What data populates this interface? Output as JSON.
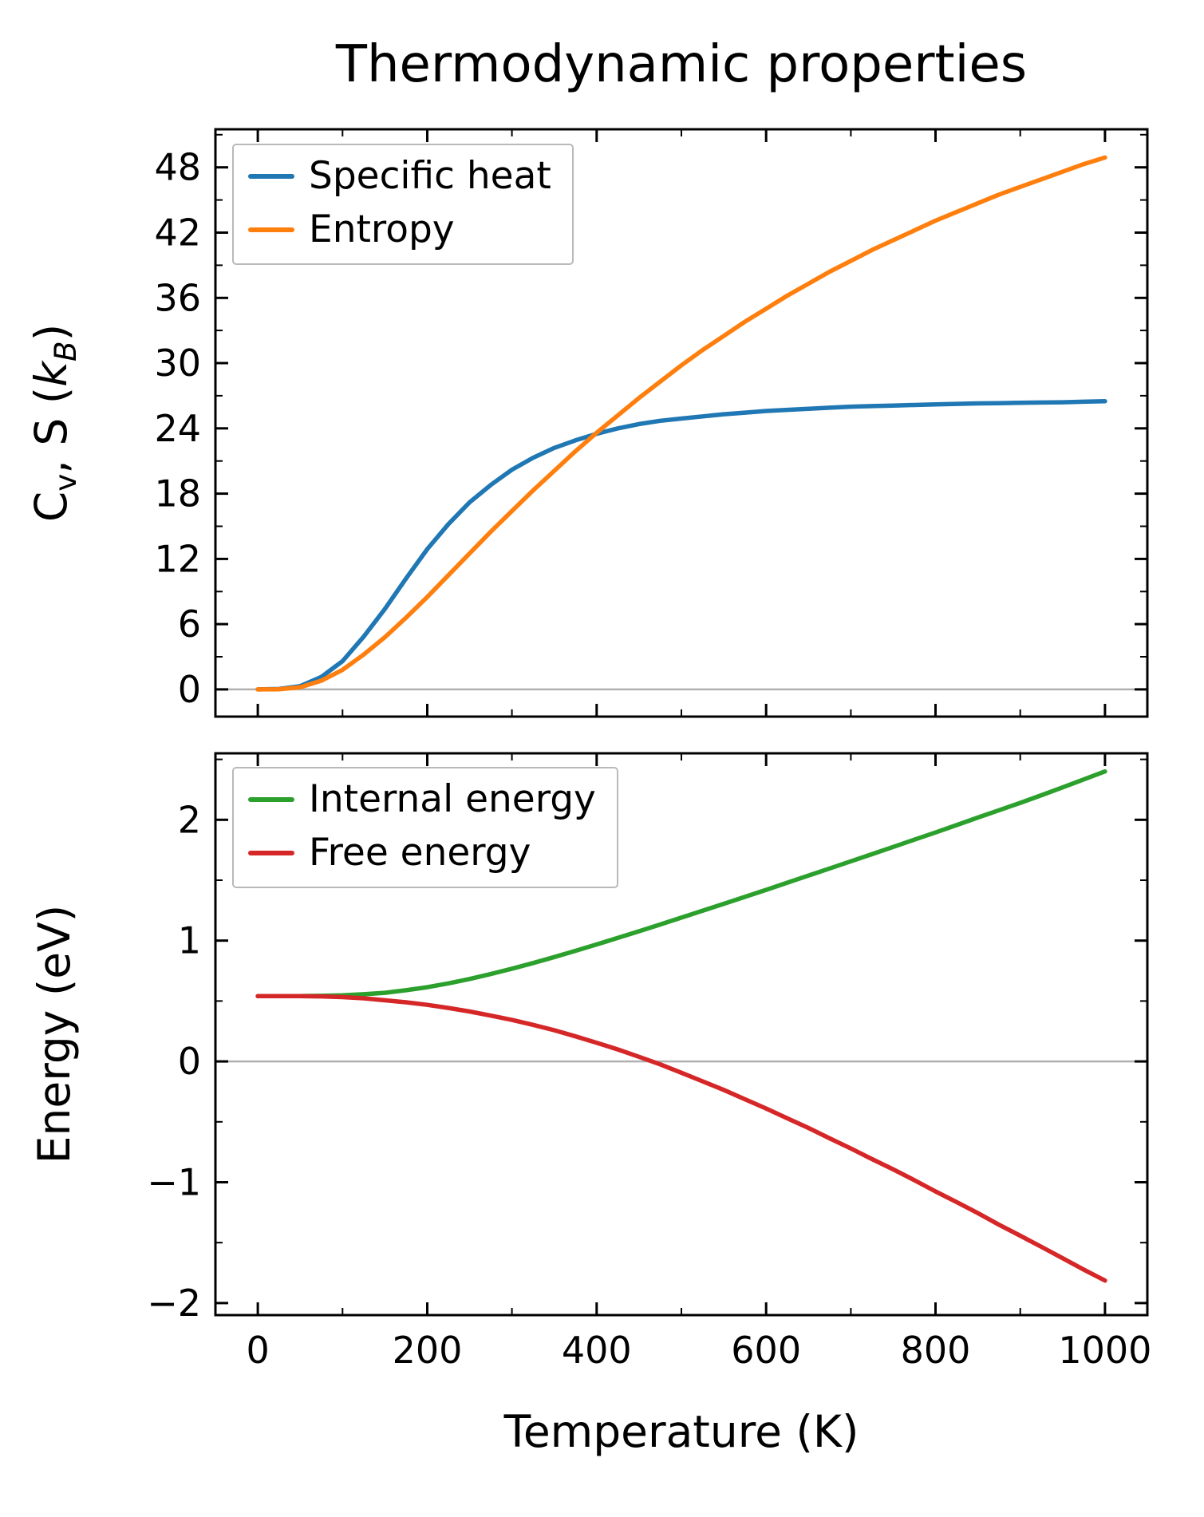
{
  "figure": {
    "title": "Thermodynamic properties",
    "background": "#ffffff",
    "text_color": "#000000",
    "zero_line_color": "#b0b0b0"
  },
  "chart_data": [
    {
      "id": "thermal-properties",
      "type": "line",
      "title": "",
      "xlabel": "",
      "ylabel": "Cv, S (kB)",
      "ylabel_parts": {
        "p1": "C",
        "p2": "v",
        "p3": ", S (",
        "p4": "k",
        "p5": "B",
        "p6": ")"
      },
      "xlim": [
        -50,
        1050
      ],
      "ylim": [
        -2.5,
        51.5
      ],
      "xticks": [
        0,
        200,
        400,
        600,
        800,
        1000
      ],
      "xticklabels": [
        "0",
        "200",
        "400",
        "600",
        "800",
        "1000"
      ],
      "show_xticklabels": false,
      "yticks": [
        0,
        6,
        12,
        18,
        24,
        30,
        36,
        42,
        48
      ],
      "yticklabels": [
        "0",
        "6",
        "12",
        "18",
        "24",
        "30",
        "36",
        "42",
        "48"
      ],
      "xminor_step": 100,
      "yminor_step": 3,
      "zero_line": true,
      "grid": false,
      "legend_position": "upper left",
      "x": [
        0,
        25,
        50,
        75,
        100,
        125,
        150,
        175,
        200,
        225,
        250,
        275,
        300,
        325,
        350,
        375,
        400,
        425,
        450,
        475,
        500,
        525,
        550,
        575,
        600,
        625,
        650,
        675,
        700,
        725,
        750,
        775,
        800,
        825,
        850,
        875,
        900,
        925,
        950,
        975,
        1000
      ],
      "series": [
        {
          "name": "Specific heat",
          "color": "#1f77b4",
          "values": [
            0.0,
            0.04,
            0.3,
            1.15,
            2.6,
            4.85,
            7.4,
            10.2,
            12.9,
            15.2,
            17.2,
            18.8,
            20.2,
            21.3,
            22.2,
            22.9,
            23.5,
            24.0,
            24.4,
            24.7,
            24.9,
            25.1,
            25.3,
            25.45,
            25.6,
            25.7,
            25.8,
            25.9,
            26.0,
            26.05,
            26.1,
            26.15,
            26.2,
            26.25,
            26.3,
            26.32,
            26.35,
            26.38,
            26.4,
            26.45,
            26.5
          ]
        },
        {
          "name": "Entropy",
          "color": "#ff7f0e",
          "values": [
            0.0,
            0.02,
            0.2,
            0.8,
            1.8,
            3.2,
            4.8,
            6.6,
            8.5,
            10.5,
            12.5,
            14.5,
            16.4,
            18.3,
            20.1,
            21.9,
            23.6,
            25.2,
            26.8,
            28.3,
            29.8,
            31.2,
            32.5,
            33.8,
            35.0,
            36.2,
            37.3,
            38.4,
            39.4,
            40.4,
            41.3,
            42.2,
            43.1,
            43.9,
            44.7,
            45.5,
            46.2,
            46.9,
            47.6,
            48.3,
            48.9
          ]
        }
      ]
    },
    {
      "id": "energies",
      "type": "line",
      "title": "",
      "xlabel": "Temperature (K)",
      "ylabel": "Energy (eV)",
      "xlim": [
        -50,
        1050
      ],
      "ylim": [
        -2.1,
        2.55
      ],
      "xticks": [
        0,
        200,
        400,
        600,
        800,
        1000
      ],
      "xticklabels": [
        "0",
        "200",
        "400",
        "600",
        "800",
        "1000"
      ],
      "show_xticklabels": true,
      "yticks": [
        -2,
        -1,
        0,
        1,
        2
      ],
      "yticklabels": [
        "−2",
        "−1",
        "0",
        "1",
        "2"
      ],
      "xminor_step": 100,
      "yminor_step": 0.5,
      "zero_line": true,
      "grid": false,
      "legend_position": "upper left",
      "x": [
        0,
        25,
        50,
        75,
        100,
        125,
        150,
        175,
        200,
        225,
        250,
        275,
        300,
        325,
        350,
        375,
        400,
        425,
        450,
        475,
        500,
        525,
        550,
        575,
        600,
        625,
        650,
        675,
        700,
        725,
        750,
        775,
        800,
        825,
        850,
        875,
        900,
        925,
        950,
        975,
        1000
      ],
      "series": [
        {
          "name": "Internal energy",
          "color": "#2ca02c",
          "values": [
            0.54,
            0.54,
            0.541,
            0.543,
            0.547,
            0.556,
            0.568,
            0.589,
            0.614,
            0.646,
            0.682,
            0.723,
            0.767,
            0.814,
            0.864,
            0.915,
            0.968,
            1.022,
            1.077,
            1.133,
            1.19,
            1.247,
            1.304,
            1.362,
            1.42,
            1.479,
            1.538,
            1.597,
            1.656,
            1.715,
            1.775,
            1.835,
            1.895,
            1.956,
            2.018,
            2.079,
            2.14,
            2.203,
            2.268,
            2.334,
            2.4
          ]
        },
        {
          "name": "Free energy",
          "color": "#d62728",
          "values": [
            0.54,
            0.54,
            0.54,
            0.538,
            0.532,
            0.522,
            0.506,
            0.489,
            0.468,
            0.442,
            0.413,
            0.379,
            0.343,
            0.302,
            0.258,
            0.207,
            0.154,
            0.099,
            0.038,
            -0.025,
            -0.094,
            -0.165,
            -0.236,
            -0.313,
            -0.39,
            -0.471,
            -0.551,
            -0.637,
            -0.721,
            -0.809,
            -0.894,
            -0.983,
            -1.076,
            -1.165,
            -1.256,
            -1.352,
            -1.443,
            -1.535,
            -1.629,
            -1.724,
            -1.814
          ]
        }
      ]
    }
  ]
}
